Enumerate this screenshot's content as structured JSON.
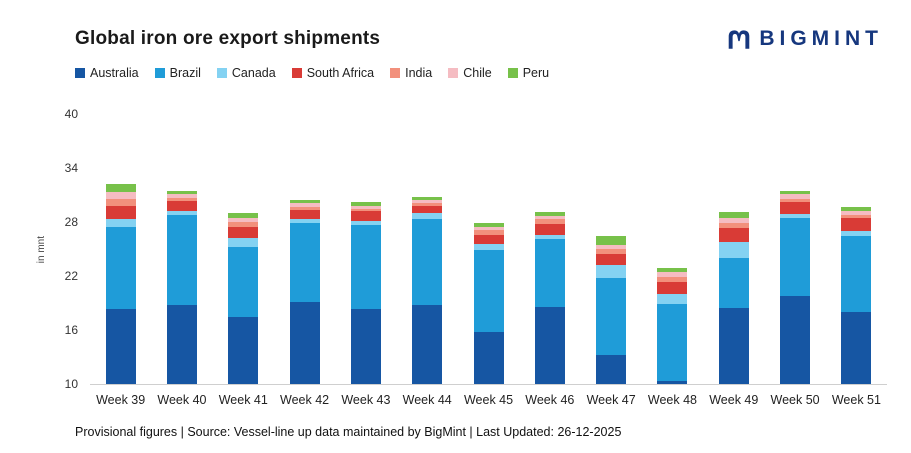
{
  "header": {
    "title": "Global iron ore export shipments",
    "brand": "BIGMINT",
    "brand_color": "#16377e",
    "logo_icon": "bigmint-m-icon"
  },
  "footer": {
    "note": "Provisional figures | Source: Vessel-line up data maintained by BigMint | Last Updated: 26-12-2025"
  },
  "chart_data": {
    "type": "bar",
    "stacked": true,
    "title": "Global iron ore export shipments",
    "xlabel": "",
    "ylabel": "in mnt",
    "ylim": [
      10,
      40
    ],
    "yticks": [
      10,
      16,
      22,
      28,
      34,
      40
    ],
    "grid": false,
    "legend_position": "top-left",
    "categories": [
      "Week 39",
      "Week 40",
      "Week 41",
      "Week 42",
      "Week 43",
      "Week 44",
      "Week 45",
      "Week 46",
      "Week 47",
      "Week 48",
      "Week 49",
      "Week 50",
      "Week 51"
    ],
    "series": [
      {
        "name": "Australia",
        "color": "#1656a3",
        "values": [
          18.3,
          18.8,
          17.4,
          19.1,
          18.3,
          18.8,
          15.8,
          18.6,
          13.2,
          10.3,
          18.5,
          19.8,
          18.0
        ]
      },
      {
        "name": "Brazil",
        "color": "#1f9cd8",
        "values": [
          9.2,
          10.0,
          7.8,
          8.8,
          9.4,
          9.5,
          9.1,
          7.5,
          8.6,
          8.6,
          5.5,
          8.7,
          8.5
        ]
      },
      {
        "name": "Canada",
        "color": "#84d2f2",
        "values": [
          0.8,
          0.4,
          1.0,
          0.4,
          0.4,
          0.7,
          0.7,
          0.5,
          1.4,
          1.1,
          1.8,
          0.4,
          0.5
        ]
      },
      {
        "name": "South Africa",
        "color": "#d93b36",
        "values": [
          1.5,
          1.1,
          1.3,
          1.0,
          1.1,
          0.8,
          1.0,
          1.2,
          1.2,
          1.3,
          1.5,
          1.3,
          1.4
        ]
      },
      {
        "name": "India",
        "color": "#f2907c",
        "values": [
          0.8,
          0.4,
          0.5,
          0.4,
          0.3,
          0.3,
          0.5,
          0.5,
          0.6,
          0.6,
          0.6,
          0.4,
          0.4
        ]
      },
      {
        "name": "Chile",
        "color": "#f5bcc2",
        "values": [
          0.7,
          0.4,
          0.5,
          0.4,
          0.3,
          0.3,
          0.4,
          0.4,
          0.5,
          0.5,
          0.6,
          0.5,
          0.4
        ]
      },
      {
        "name": "Peru",
        "color": "#77c14a",
        "values": [
          0.9,
          0.3,
          0.5,
          0.4,
          0.4,
          0.4,
          0.4,
          0.4,
          1.0,
          0.5,
          0.6,
          0.4,
          0.5
        ]
      }
    ]
  }
}
